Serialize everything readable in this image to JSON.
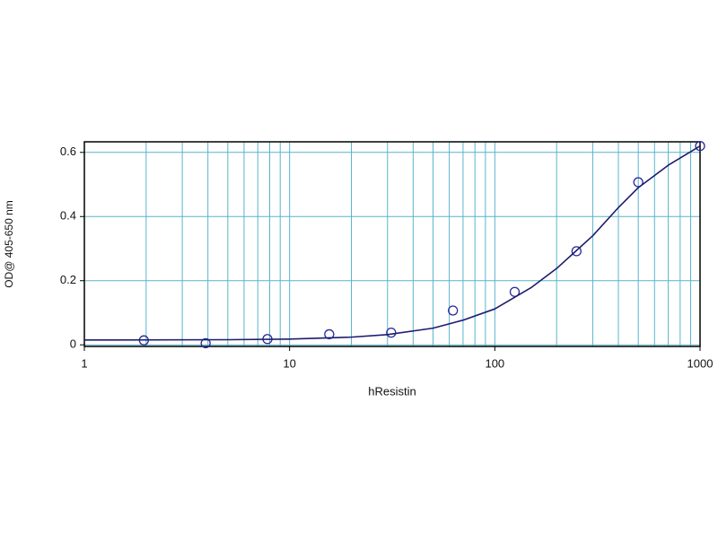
{
  "chart_data": {
    "type": "scatter",
    "x_label": "hResistin",
    "y_label": "OD@ 405-650 nm",
    "x_scale": "log",
    "xlim": [
      1,
      1000
    ],
    "xticks": [
      1,
      10,
      100,
      1000
    ],
    "xgrid": [
      2,
      3,
      4,
      5,
      6,
      7,
      8,
      9,
      10,
      20,
      30,
      40,
      50,
      60,
      70,
      80,
      90,
      100,
      200,
      300,
      400,
      500,
      600,
      700,
      800,
      900
    ],
    "ylim": [
      -0.005,
      0.633
    ],
    "yticks": [
      0,
      0.2,
      0.4,
      0.6
    ],
    "grid": true,
    "grid_color": "#5ab4cc",
    "series": [
      {
        "style": "markers",
        "color": "#2a2a9a",
        "x": [
          1.95,
          3.9,
          7.8,
          15.6,
          31.25,
          62.5,
          125,
          250,
          500,
          1000
        ],
        "values": [
          0.014,
          0.005,
          0.018,
          0.033,
          0.038,
          0.107,
          0.165,
          0.292,
          0.507,
          0.62
        ]
      },
      {
        "style": "line",
        "color": "#1c1c70",
        "x": [
          1,
          5,
          10,
          20,
          30,
          50,
          70,
          100,
          150,
          200,
          300,
          400,
          500,
          700,
          1000
        ],
        "values": [
          0.015,
          0.016,
          0.018,
          0.024,
          0.032,
          0.052,
          0.077,
          0.112,
          0.178,
          0.238,
          0.34,
          0.428,
          0.49,
          0.56,
          0.62
        ]
      }
    ]
  }
}
